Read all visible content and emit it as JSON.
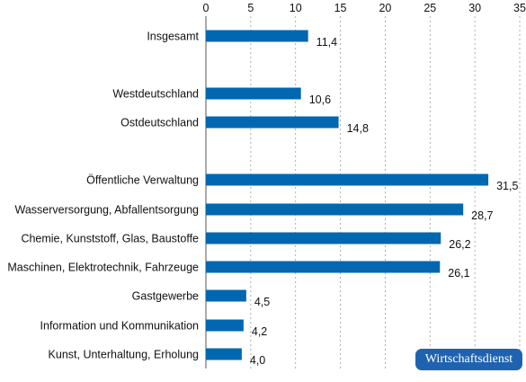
{
  "colors": {
    "bar": "#0067b0",
    "badge_bg": "#1f63b0"
  },
  "branding": {
    "logo_text": "Wirtschaftsdienst"
  },
  "chart_data": {
    "type": "bar",
    "orientation": "horizontal",
    "title": "",
    "xlabel": "",
    "ylabel": "",
    "xlim": [
      0,
      35
    ],
    "xticks": [
      "0",
      "5",
      "10",
      "15",
      "20",
      "25",
      "30",
      "35"
    ],
    "grid": "vertical dashed",
    "categories": [
      "Insgesamt",
      "Westdeutschland",
      "Ostdeutschland",
      "Öffentliche Verwaltung",
      "Wasserversorgung, Abfallentsorgung",
      "Chemie, Kunststoff, Glas, Baustoffe",
      "Maschinen, Elektrotechnik, Fahrzeuge",
      "Gastgewerbe",
      "Information und Kommunikation",
      "Kunst, Unterhaltung, Erholung"
    ],
    "values": [
      11.4,
      10.6,
      14.8,
      31.5,
      28.7,
      26.2,
      26.1,
      4.5,
      4.2,
      4.0
    ],
    "value_labels": [
      "11,4",
      "10,6",
      "14,8",
      "31,5",
      "28,7",
      "26,2",
      "26,1",
      "4,5",
      "4,2",
      "4,0"
    ]
  }
}
